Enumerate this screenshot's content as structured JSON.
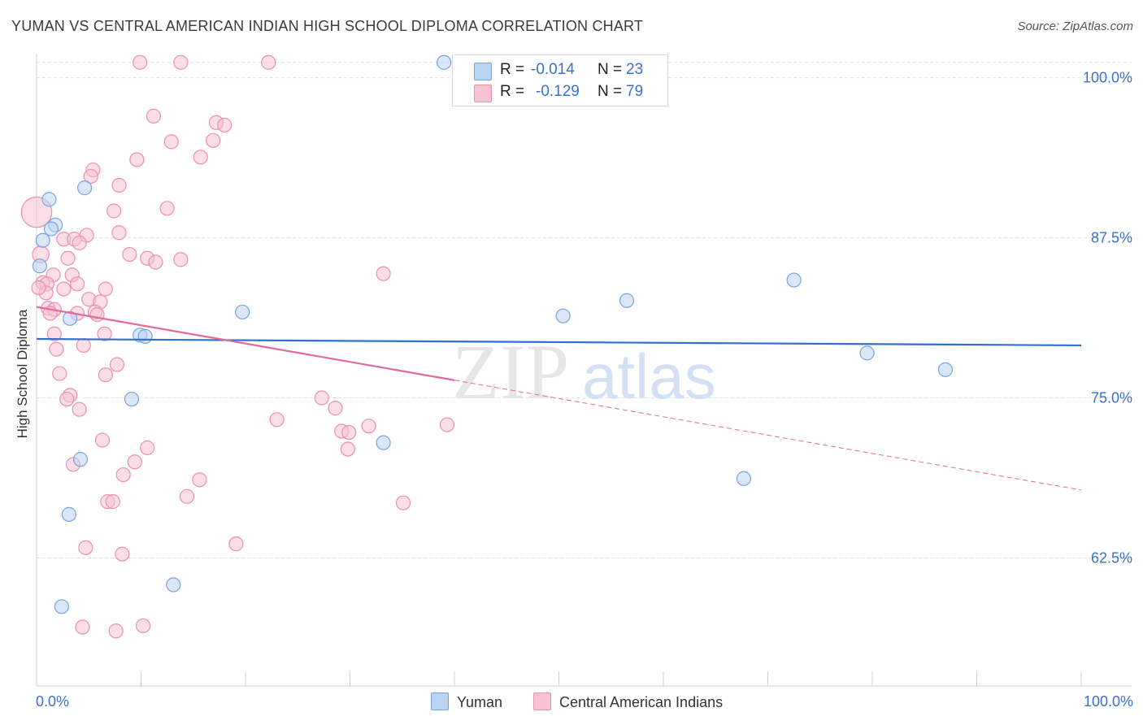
{
  "title": "YUMAN VS CENTRAL AMERICAN INDIAN HIGH SCHOOL DIPLOMA CORRELATION CHART",
  "source": "Source: ZipAtlas.com",
  "watermark": {
    "zip": "ZIP",
    "atlas": "atlas"
  },
  "legend": {
    "rows": [
      {
        "r_label": "R =",
        "r_value": "-0.014",
        "n_label": "N =",
        "n_value": "23"
      },
      {
        "r_label": "R =",
        "r_value": "-0.129",
        "n_label": "N =",
        "n_value": "79"
      }
    ]
  },
  "bottom_legend": {
    "yuman": "Yuman",
    "cai": "Central American Indians"
  },
  "colors": {
    "yuman_fill": "#b9d3f3",
    "yuman_stroke": "#7aa3de",
    "yuman_line": "#2f6fd0",
    "cai_fill": "#f7c3d3",
    "cai_stroke": "#eb8fae",
    "cai_line": "#e4699a",
    "axis_text": "#3b6fc9",
    "grid": "#e4e4e4"
  },
  "chart_data": {
    "type": "scatter",
    "title": "YUMAN VS CENTRAL AMERICAN INDIAN HIGH SCHOOL DIPLOMA CORRELATION CHART",
    "xlabel": "",
    "ylabel": "High School Diploma",
    "xlim": [
      0,
      100
    ],
    "ylim": [
      52.5,
      101.5
    ],
    "x_tick_labels": [
      "0.0%",
      "100.0%"
    ],
    "y_ticks": [
      62.5,
      75.0,
      87.5,
      100.0
    ],
    "y_tick_labels": [
      "62.5%",
      "75.0%",
      "87.5%",
      "100.0%"
    ],
    "grid": true,
    "series": [
      {
        "name": "Yuman",
        "r": -0.014,
        "n": 23,
        "trend": {
          "x": [
            0,
            100
          ],
          "y": [
            79.6,
            79.1
          ],
          "dashed_from": null
        },
        "points": [
          {
            "x": 39.0,
            "y": 101.2,
            "s": 1
          },
          {
            "x": 1.2,
            "y": 90.5,
            "s": 1
          },
          {
            "x": 4.6,
            "y": 91.4,
            "s": 1
          },
          {
            "x": 1.8,
            "y": 88.5,
            "s": 1
          },
          {
            "x": 0.6,
            "y": 87.3,
            "s": 1
          },
          {
            "x": 0.3,
            "y": 85.3,
            "s": 1
          },
          {
            "x": 3.2,
            "y": 81.2,
            "s": 1
          },
          {
            "x": 9.9,
            "y": 79.9,
            "s": 1
          },
          {
            "x": 10.4,
            "y": 79.8,
            "s": 1
          },
          {
            "x": 19.7,
            "y": 81.7,
            "s": 1
          },
          {
            "x": 50.4,
            "y": 81.4,
            "s": 1
          },
          {
            "x": 56.5,
            "y": 82.6,
            "s": 1
          },
          {
            "x": 72.5,
            "y": 84.2,
            "s": 1
          },
          {
            "x": 79.5,
            "y": 78.5,
            "s": 1
          },
          {
            "x": 87.0,
            "y": 77.2,
            "s": 1
          },
          {
            "x": 9.1,
            "y": 74.9,
            "s": 1
          },
          {
            "x": 33.2,
            "y": 71.5,
            "s": 1
          },
          {
            "x": 4.2,
            "y": 70.2,
            "s": 1
          },
          {
            "x": 67.7,
            "y": 68.7,
            "s": 1
          },
          {
            "x": 3.1,
            "y": 65.9,
            "s": 1
          },
          {
            "x": 13.1,
            "y": 60.4,
            "s": 1
          },
          {
            "x": 2.4,
            "y": 58.7,
            "s": 1
          },
          {
            "x": 1.4,
            "y": 88.2,
            "s": 1
          }
        ]
      },
      {
        "name": "Central American Indians",
        "r": -0.129,
        "n": 79,
        "trend": {
          "x": [
            0,
            100
          ],
          "y": [
            82.1,
            67.8
          ],
          "dashed_from": 40
        },
        "points": [
          {
            "x": 9.9,
            "y": 101.2,
            "s": 1
          },
          {
            "x": 13.8,
            "y": 101.2,
            "s": 1
          },
          {
            "x": 22.2,
            "y": 101.2,
            "s": 1
          },
          {
            "x": 11.2,
            "y": 97.0,
            "s": 1
          },
          {
            "x": 17.2,
            "y": 96.5,
            "s": 1
          },
          {
            "x": 18.0,
            "y": 96.3,
            "s": 1
          },
          {
            "x": 12.9,
            "y": 95.0,
            "s": 1
          },
          {
            "x": 16.9,
            "y": 95.1,
            "s": 1
          },
          {
            "x": 9.6,
            "y": 93.6,
            "s": 1
          },
          {
            "x": 15.7,
            "y": 93.8,
            "s": 1
          },
          {
            "x": 5.4,
            "y": 92.8,
            "s": 1
          },
          {
            "x": 5.2,
            "y": 92.3,
            "s": 1
          },
          {
            "x": 7.9,
            "y": 91.6,
            "s": 1
          },
          {
            "x": 7.4,
            "y": 89.6,
            "s": 1
          },
          {
            "x": 12.5,
            "y": 89.8,
            "s": 1
          },
          {
            "x": 0.0,
            "y": 89.5,
            "s": 2.2
          },
          {
            "x": 7.9,
            "y": 87.9,
            "s": 1
          },
          {
            "x": 4.8,
            "y": 87.7,
            "s": 1
          },
          {
            "x": 2.6,
            "y": 87.4,
            "s": 1
          },
          {
            "x": 3.6,
            "y": 87.4,
            "s": 1
          },
          {
            "x": 4.1,
            "y": 87.1,
            "s": 1
          },
          {
            "x": 0.4,
            "y": 86.2,
            "s": 1.2
          },
          {
            "x": 8.9,
            "y": 86.2,
            "s": 1
          },
          {
            "x": 10.6,
            "y": 85.9,
            "s": 1
          },
          {
            "x": 11.4,
            "y": 85.6,
            "s": 1
          },
          {
            "x": 13.8,
            "y": 85.8,
            "s": 1
          },
          {
            "x": 3.0,
            "y": 85.9,
            "s": 1
          },
          {
            "x": 33.2,
            "y": 84.7,
            "s": 1
          },
          {
            "x": 1.6,
            "y": 84.6,
            "s": 1
          },
          {
            "x": 3.4,
            "y": 84.6,
            "s": 1
          },
          {
            "x": 0.6,
            "y": 84.0,
            "s": 1
          },
          {
            "x": 1.0,
            "y": 83.9,
            "s": 1
          },
          {
            "x": 3.9,
            "y": 83.9,
            "s": 1
          },
          {
            "x": 2.6,
            "y": 83.5,
            "s": 1
          },
          {
            "x": 6.6,
            "y": 83.5,
            "s": 1
          },
          {
            "x": 0.9,
            "y": 83.2,
            "s": 1
          },
          {
            "x": 5.0,
            "y": 82.7,
            "s": 1
          },
          {
            "x": 6.1,
            "y": 82.5,
            "s": 1
          },
          {
            "x": 1.1,
            "y": 82.0,
            "s": 1
          },
          {
            "x": 1.7,
            "y": 81.9,
            "s": 1
          },
          {
            "x": 3.9,
            "y": 81.6,
            "s": 1
          },
          {
            "x": 5.6,
            "y": 81.7,
            "s": 1
          },
          {
            "x": 1.3,
            "y": 81.6,
            "s": 1
          },
          {
            "x": 5.8,
            "y": 81.5,
            "s": 1
          },
          {
            "x": 1.7,
            "y": 80.0,
            "s": 1
          },
          {
            "x": 6.5,
            "y": 80.0,
            "s": 1
          },
          {
            "x": 1.9,
            "y": 78.8,
            "s": 1
          },
          {
            "x": 4.5,
            "y": 79.1,
            "s": 1
          },
          {
            "x": 7.7,
            "y": 77.6,
            "s": 1
          },
          {
            "x": 2.2,
            "y": 76.9,
            "s": 1
          },
          {
            "x": 6.6,
            "y": 76.8,
            "s": 1
          },
          {
            "x": 3.2,
            "y": 75.2,
            "s": 1
          },
          {
            "x": 2.9,
            "y": 74.9,
            "s": 1
          },
          {
            "x": 27.3,
            "y": 75.0,
            "s": 1
          },
          {
            "x": 4.1,
            "y": 74.1,
            "s": 1
          },
          {
            "x": 28.6,
            "y": 74.2,
            "s": 1
          },
          {
            "x": 23.0,
            "y": 73.3,
            "s": 1
          },
          {
            "x": 31.8,
            "y": 72.8,
            "s": 1
          },
          {
            "x": 39.3,
            "y": 72.9,
            "s": 1
          },
          {
            "x": 29.2,
            "y": 72.4,
            "s": 1
          },
          {
            "x": 29.9,
            "y": 72.3,
            "s": 1
          },
          {
            "x": 6.3,
            "y": 71.7,
            "s": 1
          },
          {
            "x": 10.6,
            "y": 71.1,
            "s": 1
          },
          {
            "x": 29.8,
            "y": 71.0,
            "s": 1
          },
          {
            "x": 9.4,
            "y": 70.0,
            "s": 1
          },
          {
            "x": 3.5,
            "y": 69.8,
            "s": 1
          },
          {
            "x": 8.3,
            "y": 69.0,
            "s": 1
          },
          {
            "x": 15.6,
            "y": 68.6,
            "s": 1
          },
          {
            "x": 14.4,
            "y": 67.3,
            "s": 1
          },
          {
            "x": 6.8,
            "y": 66.9,
            "s": 1
          },
          {
            "x": 7.3,
            "y": 66.9,
            "s": 1
          },
          {
            "x": 35.1,
            "y": 66.8,
            "s": 1
          },
          {
            "x": 19.1,
            "y": 63.6,
            "s": 1
          },
          {
            "x": 4.7,
            "y": 63.3,
            "s": 1
          },
          {
            "x": 8.2,
            "y": 62.8,
            "s": 1
          },
          {
            "x": 4.4,
            "y": 57.1,
            "s": 1
          },
          {
            "x": 7.6,
            "y": 56.8,
            "s": 1
          },
          {
            "x": 10.2,
            "y": 57.2,
            "s": 1
          },
          {
            "x": 0.2,
            "y": 83.6,
            "s": 1
          }
        ]
      }
    ]
  }
}
